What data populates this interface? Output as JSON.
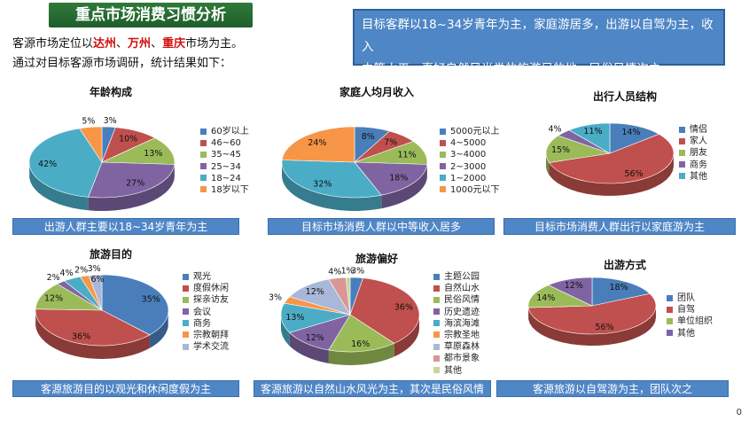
{
  "header": {
    "title": "重点市场消费习惯分析"
  },
  "intro": {
    "line1_prefix": "客源市场定位以",
    "city1": "达州",
    "sep1": "、",
    "city2": "万州",
    "sep2": "、",
    "city3": "重庆",
    "line1_suffix": "市场为主。",
    "line2": "通过对目标客源市场调研，统计结果如下："
  },
  "info_box": {
    "line1": "目标客群以18~34岁青年为主，家庭游居多，出游以自驾为主，收入",
    "line2": "中等水平，喜好自然风光类的旅游目的地，民俗风情次之。"
  },
  "page_number": "0",
  "chart_data": [
    {
      "type": "pie",
      "title": "年龄构成",
      "caption": "出游人群主要以18~34岁青年为主",
      "categories": [
        "60岁以上",
        "46~60",
        "35~45",
        "25~34",
        "18~24",
        "18岁以下"
      ],
      "values": [
        3,
        10,
        13,
        27,
        42,
        5
      ],
      "labels": [
        "3%",
        "10%",
        "13%",
        "27%",
        "42%",
        "5%"
      ],
      "colors": [
        "#4a7ebb",
        "#c0504d",
        "#9bbb59",
        "#8064a2",
        "#4bacc6",
        "#f79646"
      ],
      "legend_position": "right"
    },
    {
      "type": "pie",
      "title": "家庭人均月收入",
      "caption": "目标市场消费人群以中等收入居多",
      "categories": [
        "5000元以上",
        "4~5000",
        "3~4000",
        "2~3000",
        "1~2000",
        "1000元以下"
      ],
      "values": [
        8,
        7,
        11,
        18,
        32,
        24
      ],
      "labels": [
        "8%",
        "7%",
        "11%",
        "18%",
        "32%",
        "24%"
      ],
      "colors": [
        "#4a7ebb",
        "#c0504d",
        "#9bbb59",
        "#8064a2",
        "#4bacc6",
        "#f79646"
      ],
      "legend_position": "right"
    },
    {
      "type": "pie",
      "title": "出行人员结构",
      "caption": "目标市场消费人群出行以家庭游为主",
      "categories": [
        "情侣",
        "家人",
        "朋友",
        "商务",
        "其他"
      ],
      "values": [
        14,
        56,
        15,
        4,
        11
      ],
      "labels": [
        "14%",
        "56%",
        "15%",
        "4%",
        "11%"
      ],
      "colors": [
        "#4a7ebb",
        "#c0504d",
        "#9bbb59",
        "#8064a2",
        "#4bacc6"
      ],
      "legend_position": "right"
    },
    {
      "type": "pie",
      "title": "旅游目的",
      "caption": "客源旅游目的以观光和休闲度假为主",
      "categories": [
        "观光",
        "度假休闲",
        "探亲访友",
        "会议",
        "商务",
        "宗教朝拜",
        "学术交流"
      ],
      "values": [
        35,
        36,
        12,
        2,
        4,
        2,
        3
      ],
      "labels": [
        "35%",
        "36%",
        "12%",
        "2%",
        "4%",
        "2%",
        "3%"
      ],
      "colors": [
        "#4a7ebb",
        "#c0504d",
        "#9bbb59",
        "#8064a2",
        "#4bacc6",
        "#f79646",
        "#a9b8d8"
      ],
      "extra_label": "6%",
      "legend_position": "right"
    },
    {
      "type": "pie",
      "title": "旅游偏好",
      "caption": "客源旅游以自然山水风光为主，其次是民俗风情",
      "categories": [
        "主题公园",
        "自然山水",
        "民俗风情",
        "历史遗迹",
        "海滨海滩",
        "宗教圣地",
        "草原森林",
        "都市景象",
        "其他"
      ],
      "values": [
        3,
        36,
        16,
        12,
        13,
        3,
        12,
        4,
        1
      ],
      "labels": [
        "3%",
        "36%",
        "16%",
        "12%",
        "13%",
        "3%",
        "12%",
        "4%",
        "1%"
      ],
      "colors": [
        "#4a7ebb",
        "#c0504d",
        "#9bbb59",
        "#8064a2",
        "#4bacc6",
        "#f79646",
        "#a9b8d8",
        "#d99694",
        "#c3d69b"
      ],
      "legend_position": "right"
    },
    {
      "type": "pie",
      "title": "出游方式",
      "caption": "客源旅游以自驾游为主，团队次之",
      "categories": [
        "团队",
        "自驾",
        "单位组织",
        "其他"
      ],
      "values": [
        18,
        56,
        14,
        12
      ],
      "labels": [
        "18%",
        "56%",
        "14%",
        "12%"
      ],
      "colors": [
        "#4a7ebb",
        "#c0504d",
        "#9bbb59",
        "#8064a2"
      ],
      "legend_position": "right"
    }
  ]
}
